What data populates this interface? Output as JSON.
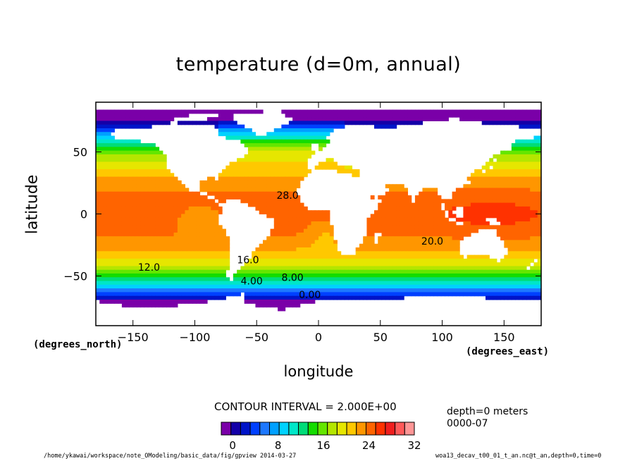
{
  "chart_data": {
    "type": "heatmap",
    "title": "temperature (d=0m, annual)",
    "xlabel": "longitude",
    "ylabel": "latitude",
    "x_unit": "(degrees_east)",
    "y_unit": "(degrees_north)",
    "xlim": [
      -180,
      180
    ],
    "ylim": [
      -90,
      90
    ],
    "x_ticks": [
      -150,
      -100,
      -50,
      0,
      50,
      100,
      150
    ],
    "y_ticks": [
      50,
      0,
      -50
    ],
    "x_tick_labels": [
      "−150",
      "−100",
      "−50",
      "0",
      "50",
      "100",
      "150"
    ],
    "y_tick_labels": [
      "50",
      "0",
      "−50"
    ],
    "contour_labels": [
      {
        "text": "28.0",
        "lon": -25,
        "lat": 15
      },
      {
        "text": "20.0",
        "lon": 92,
        "lat": -22
      },
      {
        "text": "16.0",
        "lon": -57,
        "lat": -37
      },
      {
        "text": "12.0",
        "lon": -137,
        "lat": -43
      },
      {
        "text": "4.00",
        "lon": -54,
        "lat": -54
      },
      {
        "text": "8.00",
        "lon": -21,
        "lat": -51
      },
      {
        "text": "0.00",
        "lon": -7,
        "lat": -65
      }
    ],
    "contour_interval": "CONTOUR INTERVAL = 2.000E+00",
    "colorbar": {
      "min": -2,
      "max": 32,
      "step": 2,
      "tick_values": [
        0,
        8,
        16,
        24,
        32
      ],
      "tick_labels": [
        "0",
        "8",
        "16",
        "24",
        "32"
      ],
      "colors": [
        "#7a00a8",
        "#1400a8",
        "#0014c8",
        "#0040ff",
        "#1e78ff",
        "#00a0ff",
        "#00d2ff",
        "#00e6c8",
        "#00dc78",
        "#14dc00",
        "#64e600",
        "#b4e600",
        "#e6e600",
        "#ffc800",
        "#ff9600",
        "#ff6400",
        "#ff3200",
        "#f01e1e",
        "#ff5a5a",
        "#ff9696"
      ]
    }
  },
  "annotations": {
    "depth_line1": "depth=0 meters",
    "depth_line2": "0000-07"
  },
  "footer": {
    "left": "/home/ykawai/workspace/note_OModeling/basic_data/fig/gpview  2014-03-27",
    "right": "woa13_decav_t00_01_t_an.nc@t_an,depth=0,time=0"
  },
  "colors": {
    "land": "#ffffff",
    "frame": "#000000"
  }
}
